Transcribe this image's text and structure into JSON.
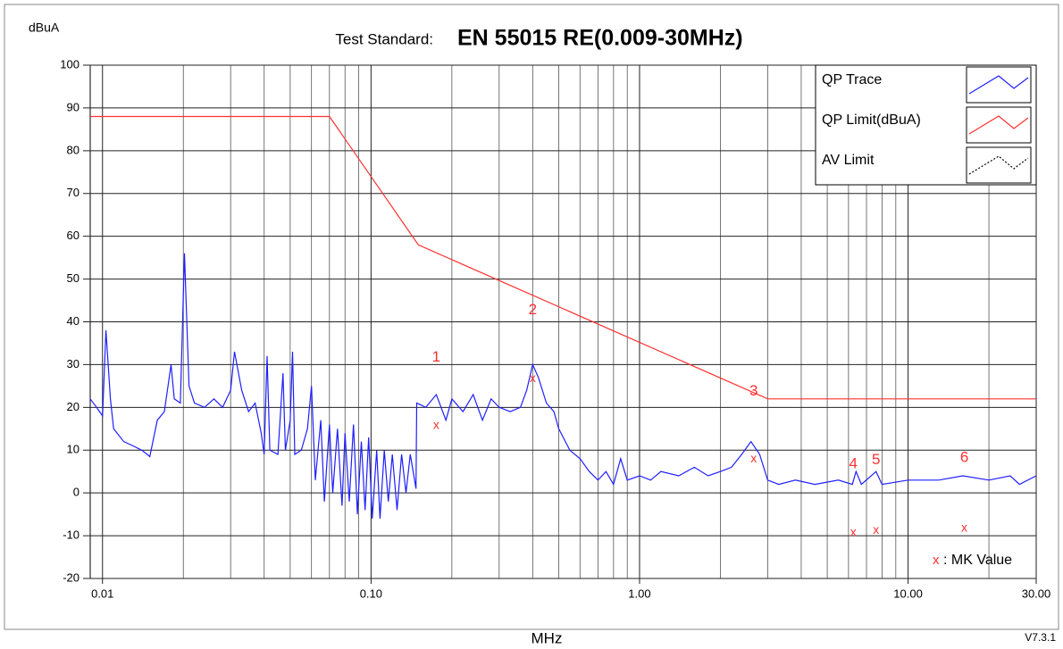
{
  "chart_data": {
    "type": "line",
    "title_prefix": "Test Standard:",
    "title": "EN 55015 RE(0.009-30MHz)",
    "y_label": "dBuA",
    "x_label": "MHz",
    "version": "V7.3.1",
    "xscale": "log",
    "xlim": [
      0.009,
      30
    ],
    "ylim": [
      -20,
      100
    ],
    "xticks": [
      {
        "value": 0.01,
        "label": "0.01"
      },
      {
        "value": 0.1,
        "label": "0.10"
      },
      {
        "value": 1,
        "label": "1.00"
      },
      {
        "value": 10,
        "label": "10.00"
      },
      {
        "value": 30,
        "label": "30.00"
      }
    ],
    "xminorticks": [
      0.02,
      0.03,
      0.04,
      0.05,
      0.06,
      0.07,
      0.08,
      0.09,
      0.2,
      0.3,
      0.4,
      0.5,
      0.6,
      0.7,
      0.8,
      0.9,
      2,
      3,
      4,
      5,
      6,
      7,
      8,
      9,
      20
    ],
    "yticks": [
      -20,
      -10,
      0,
      10,
      20,
      30,
      40,
      50,
      60,
      70,
      80,
      90,
      100
    ],
    "grid": true,
    "legend": "upper right",
    "series": [
      {
        "name": "QP Trace",
        "color": "#1f1fff",
        "x": [
          0.009,
          0.0095,
          0.01,
          0.0103,
          0.0107,
          0.011,
          0.012,
          0.013,
          0.014,
          0.015,
          0.016,
          0.017,
          0.018,
          0.0185,
          0.0195,
          0.0202,
          0.021,
          0.022,
          0.024,
          0.026,
          0.028,
          0.03,
          0.031,
          0.033,
          0.035,
          0.037,
          0.039,
          0.04,
          0.041,
          0.042,
          0.045,
          0.047,
          0.048,
          0.05,
          0.051,
          0.052,
          0.055,
          0.058,
          0.06,
          0.062,
          0.065,
          0.067,
          0.07,
          0.072,
          0.075,
          0.078,
          0.08,
          0.083,
          0.086,
          0.089,
          0.092,
          0.095,
          0.098,
          0.101,
          0.105,
          0.108,
          0.112,
          0.116,
          0.12,
          0.125,
          0.13,
          0.135,
          0.14,
          0.147,
          0.148,
          0.16,
          0.175,
          0.19,
          0.2,
          0.22,
          0.24,
          0.26,
          0.28,
          0.3,
          0.33,
          0.36,
          0.38,
          0.4,
          0.42,
          0.45,
          0.48,
          0.5,
          0.55,
          0.6,
          0.65,
          0.7,
          0.75,
          0.8,
          0.85,
          0.9,
          1.0,
          1.1,
          1.2,
          1.4,
          1.6,
          1.8,
          2.0,
          2.2,
          2.4,
          2.6,
          2.8,
          3.0,
          3.3,
          3.8,
          4.5,
          5.5,
          6.2,
          6.4,
          6.7,
          7.6,
          8,
          10,
          13,
          16,
          20,
          24,
          26,
          30
        ],
        "values": [
          22,
          20,
          18,
          38,
          22,
          15,
          12,
          11,
          10,
          8.5,
          17,
          19,
          30,
          22,
          21,
          56,
          25,
          21,
          20,
          22,
          20,
          24,
          33,
          24,
          19,
          21,
          14,
          9,
          32,
          10,
          9,
          28,
          10,
          17,
          33,
          9,
          10,
          15,
          25,
          3,
          17,
          -2,
          16,
          0,
          15,
          -3,
          14,
          -2,
          16,
          -5,
          12,
          -4,
          13,
          -6,
          10,
          -6,
          10,
          -2,
          9,
          -4,
          9,
          0,
          9,
          1,
          21,
          20,
          23,
          17,
          22,
          19,
          23,
          17,
          22,
          20,
          19,
          20,
          24,
          30,
          27,
          21,
          19,
          15,
          10,
          8,
          5,
          3,
          5,
          2,
          8,
          3,
          4,
          3,
          5,
          4,
          6,
          4,
          5,
          6,
          9,
          12,
          9,
          3,
          2,
          3,
          2,
          3,
          2,
          5,
          2,
          5,
          2,
          3,
          3,
          4,
          3,
          4,
          2,
          4
        ]
      },
      {
        "name": "QP Limit(dBuA)",
        "color": "#ff3030",
        "x": [
          0.009,
          0.07,
          0.15,
          3.0,
          30
        ],
        "values": [
          88,
          88,
          58,
          22,
          22
        ]
      },
      {
        "name": "AV Limit",
        "color": "#000000",
        "x": [],
        "values": []
      }
    ],
    "marker_legend": {
      "symbol": "x",
      "text": ": MK Value"
    },
    "markers": [
      {
        "label": "1",
        "x": 0.175,
        "reading": 30,
        "value": 15.5
      },
      {
        "label": "2",
        "x": 0.4,
        "reading": 41,
        "value": 26.5
      },
      {
        "label": "3",
        "x": 2.66,
        "reading": 22,
        "value": 7.7
      },
      {
        "label": "4",
        "x": 6.25,
        "reading": 5,
        "value": -9.5
      },
      {
        "label": "5",
        "x": 7.6,
        "reading": 6,
        "value": -9
      },
      {
        "label": "6",
        "x": 16.2,
        "reading": 6.5,
        "value": -8.5
      }
    ]
  }
}
